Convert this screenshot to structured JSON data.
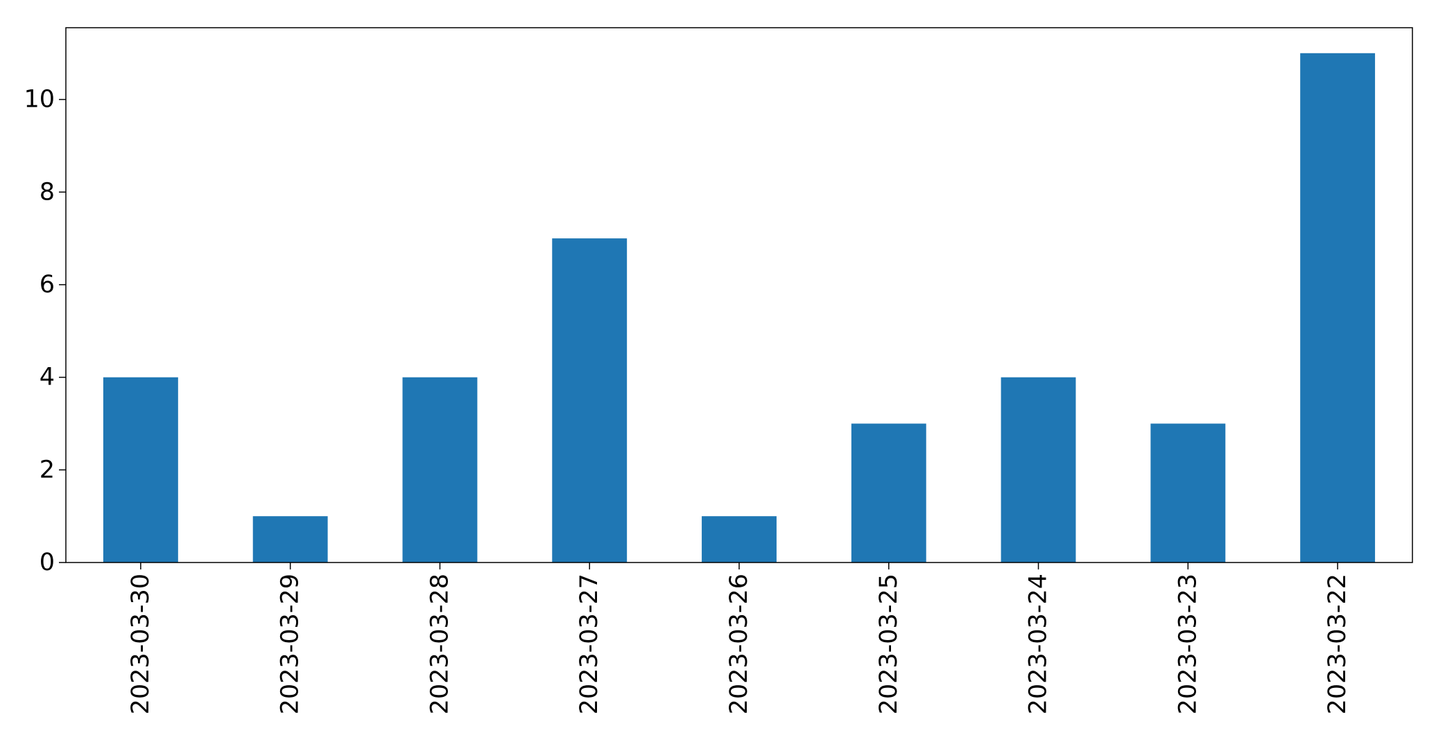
{
  "chart_data": {
    "type": "bar",
    "title": "",
    "xlabel": "",
    "ylabel": "",
    "categories": [
      "2023-03-30",
      "2023-03-29",
      "2023-03-28",
      "2023-03-27",
      "2023-03-26",
      "2023-03-25",
      "2023-03-24",
      "2023-03-23",
      "2023-03-22"
    ],
    "values": [
      4,
      1,
      4,
      7,
      1,
      3,
      4,
      3,
      11
    ],
    "ylim": [
      0,
      11.55
    ],
    "yticks": [
      0,
      2,
      4,
      6,
      8,
      10
    ],
    "grid": false,
    "legend": "none",
    "bar_color": "#1f77b4",
    "x_tick_rotation": "vertical"
  }
}
